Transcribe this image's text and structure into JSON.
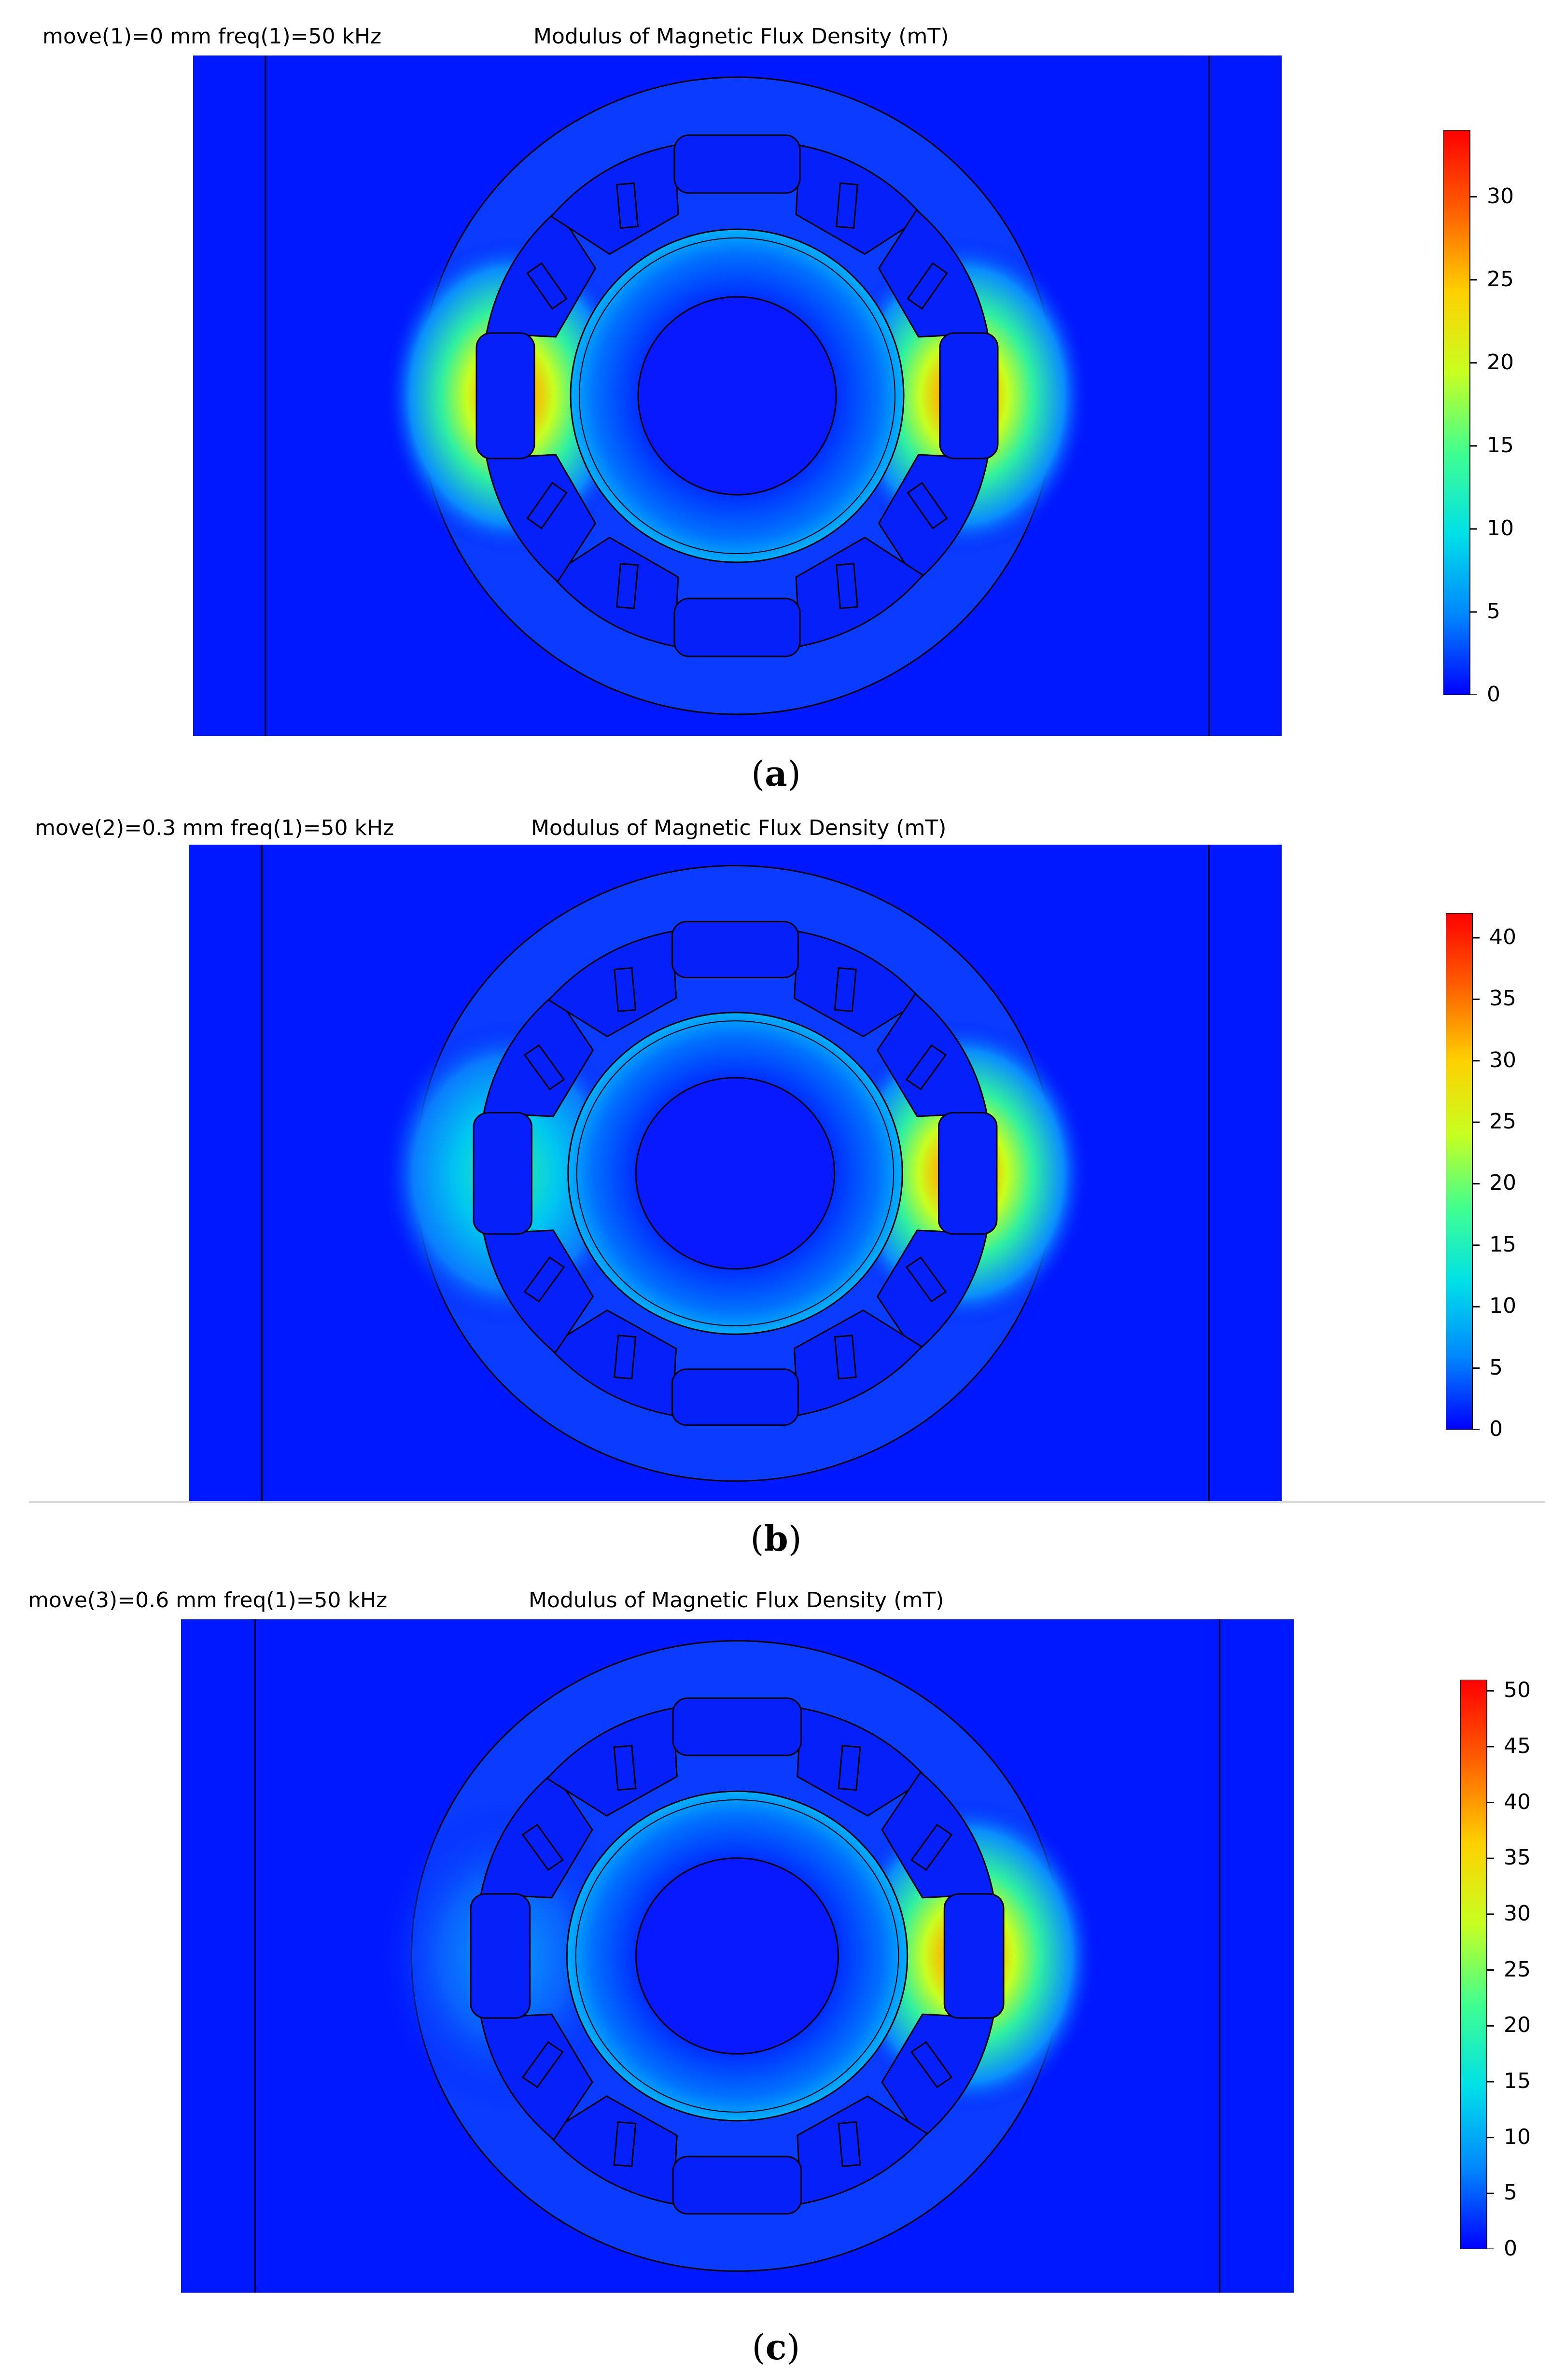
{
  "colors": {
    "background": "#0018ff",
    "outline": "#000000",
    "colormap": [
      "#0000ff",
      "#0088ff",
      "#00e0e8",
      "#40ff90",
      "#c8ff20",
      "#ffd000",
      "#ff6000",
      "#ff0000"
    ]
  },
  "panels": [
    {
      "id": "a",
      "header_left": "move(1)=0 mm freq(1)=50 kHz",
      "header_center": "Modulus of Magnetic Flux Density (mT)",
      "caption_letter": "a",
      "colorbar_ticks": [
        "0",
        "5",
        "10",
        "15",
        "20",
        "25",
        "30"
      ],
      "colorbar_max": 34,
      "hot_left": 1.0,
      "hot_right": 1.0
    },
    {
      "id": "b",
      "header_left": "move(2)=0.3 mm freq(1)=50 kHz",
      "header_center": "Modulus of Magnetic Flux Density (mT)",
      "caption_letter": "b",
      "colorbar_ticks": [
        "0",
        "5",
        "10",
        "15",
        "20",
        "25",
        "30",
        "35",
        "40"
      ],
      "colorbar_max": 42,
      "hot_left": 0.5,
      "hot_right": 1.0
    },
    {
      "id": "c",
      "header_left": "move(3)=0.6 mm freq(1)=50 kHz",
      "header_center": "Modulus of Magnetic Flux Density (mT)",
      "caption_letter": "c",
      "colorbar_ticks": [
        "0",
        "5",
        "10",
        "15",
        "20",
        "25",
        "30",
        "35",
        "40",
        "45",
        "50"
      ],
      "colorbar_max": 51,
      "hot_left": 0.15,
      "hot_right": 1.0
    }
  ]
}
